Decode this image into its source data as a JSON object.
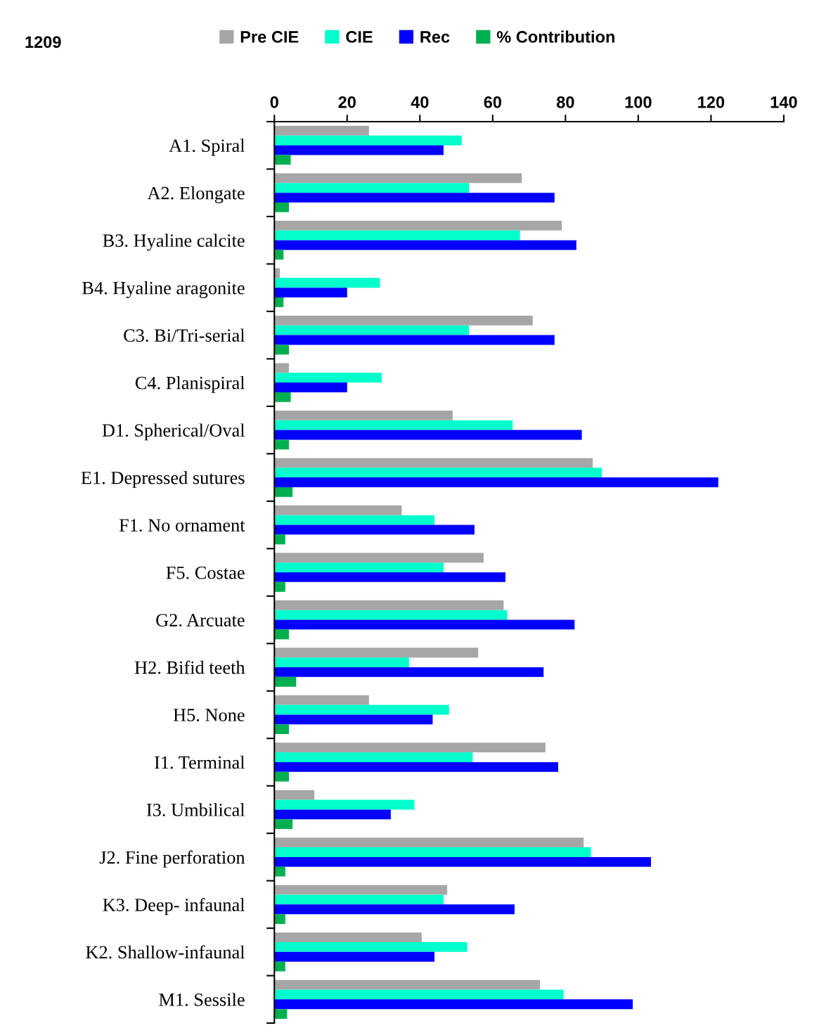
{
  "chart_data": {
    "type": "bar",
    "orientation": "horizontal",
    "title": "1209",
    "legend": "top",
    "grid": false,
    "categories": [
      "A1. Spiral",
      "A2. Elongate",
      "B3. Hyaline calcite",
      "B4. Hyaline aragonite",
      "C3. Bi/Tri-serial",
      "C4. Planispiral",
      "D1. Spherical/Oval",
      "E1. Depressed sutures",
      "F1. No ornament",
      "F5. Costae",
      "G2. Arcuate",
      "H2. Bifid teeth",
      "H5. None",
      "I1. Terminal",
      "I3. Umbilical",
      "J2. Fine perforation",
      "K3. Deep- infaunal",
      "K2. Shallow-infaunal",
      "M1. Sessile"
    ],
    "series": [
      {
        "name": "Pre CIE",
        "color": "#a6a6a6",
        "values": [
          26,
          68,
          79,
          1.5,
          71,
          4,
          49,
          87.5,
          35,
          57.5,
          63,
          56,
          26,
          74.5,
          11,
          85,
          47.5,
          40.5,
          73
        ]
      },
      {
        "name": "CIE",
        "color": "#00ffcc",
        "values": [
          51.5,
          53.5,
          67.5,
          29,
          53.5,
          29.5,
          65.5,
          90,
          44,
          46.5,
          64,
          37,
          48,
          54.5,
          38.5,
          87,
          46.5,
          53,
          79.5
        ]
      },
      {
        "name": "Rec",
        "color": "#0000ff",
        "values": [
          46.5,
          77,
          83,
          20,
          77,
          20,
          84.5,
          122,
          55,
          63.5,
          82.5,
          74,
          43.5,
          78,
          32,
          103.5,
          66,
          44,
          98.5
        ]
      },
      {
        "name": "% Contribution",
        "color": "#00b050",
        "values": [
          4.5,
          4,
          2.5,
          2.5,
          4,
          4.5,
          4,
          5,
          3,
          3,
          4,
          6,
          4,
          4,
          5,
          3,
          3,
          3,
          3.5
        ]
      }
    ],
    "xlim": [
      0,
      140
    ],
    "xticks": [
      0,
      20,
      40,
      60,
      80,
      100,
      120,
      140
    ]
  }
}
